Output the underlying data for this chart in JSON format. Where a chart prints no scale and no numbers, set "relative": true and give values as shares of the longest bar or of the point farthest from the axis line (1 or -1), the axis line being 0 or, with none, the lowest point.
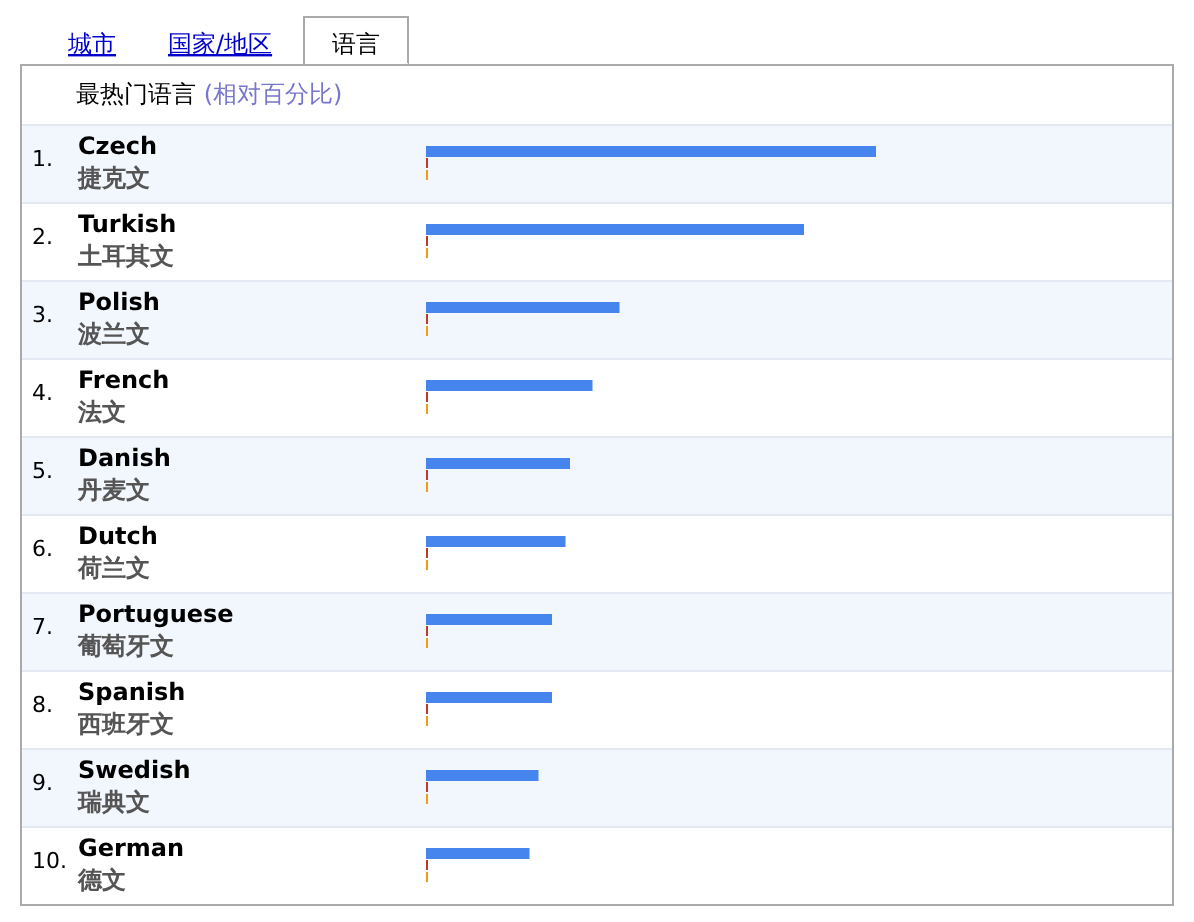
{
  "chart_data": {
    "type": "bar",
    "orientation": "horizontal",
    "relative": true,
    "title": "最热门语言 (相对百分比)",
    "annotations": [
      "城市",
      "国家/地区",
      "语言"
    ],
    "categories": [
      "1. Czech 捷克文",
      "2. Turkish 土耳其文",
      "3. Polish 波兰文",
      "4. French 法文",
      "5. Danish 丹麦文",
      "6. Dutch 荷兰文",
      "7. Portuguese 葡萄牙文",
      "8. Spanish 西班牙文",
      "9. Swedish 瑞典文",
      "10. German 德文"
    ],
    "values": [
      1,
      0.84,
      0.43,
      0.37,
      0.32,
      0.31,
      0.28,
      0.28,
      0.25,
      0.23
    ],
    "color": "#4684ee"
  }
}
